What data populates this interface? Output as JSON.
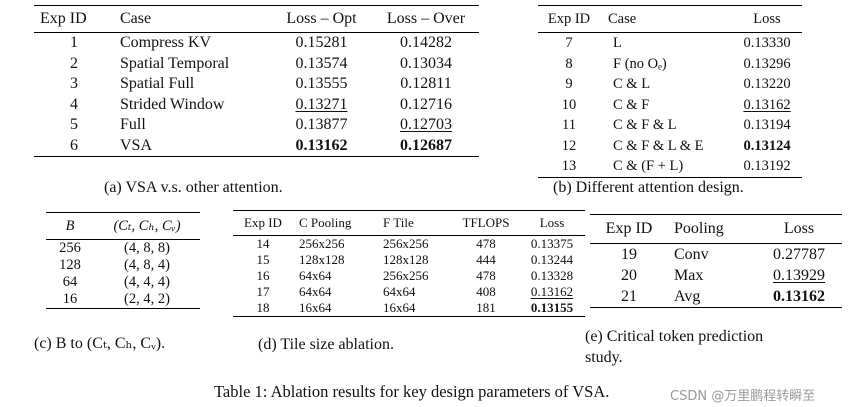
{
  "table_a": {
    "headers": [
      "Exp ID",
      "Case",
      "Loss – Opt",
      "Loss – Over"
    ],
    "rows": [
      [
        "1",
        "Compress KV",
        "0.15281",
        "0.14282"
      ],
      [
        "2",
        "Spatial Temporal",
        "0.13574",
        "0.13034"
      ],
      [
        "3",
        "Spatial Full",
        "0.13555",
        "0.12811"
      ],
      [
        "4",
        "Strided Window",
        "0.13271",
        "0.12716"
      ],
      [
        "5",
        "Full",
        "0.13877",
        "0.12703"
      ],
      [
        "6",
        "VSA",
        "0.13162",
        "0.12687"
      ]
    ],
    "caption": "(a) VSA  v.s. other attention."
  },
  "table_b": {
    "headers": [
      "Exp ID",
      "Case",
      "Loss"
    ],
    "rows": [
      [
        "7",
        "L",
        "0.13330"
      ],
      [
        "8",
        "F (no Oₑ)",
        "0.13296"
      ],
      [
        "9",
        "C & L",
        "0.13220"
      ],
      [
        "10",
        "C & F",
        "0.13162"
      ],
      [
        "11",
        "C & F & L",
        "0.13194"
      ],
      [
        "12",
        "C & F & L & E",
        "0.13124"
      ],
      [
        "13",
        "C & (F + L)",
        "0.13192"
      ]
    ],
    "caption": "(b) Different attention design."
  },
  "table_c": {
    "headers": [
      "B",
      "(Cₜ, Cₕ, Cᵥ)"
    ],
    "rows": [
      [
        "256",
        "(4, 8, 8)"
      ],
      [
        "128",
        "(4, 8, 4)"
      ],
      [
        "64",
        "(4, 4, 4)"
      ],
      [
        "16",
        "(2, 4, 2)"
      ]
    ],
    "caption": "(c) B to (Cₜ,  Cₕ,  Cᵥ)."
  },
  "table_d": {
    "headers": [
      "Exp ID",
      "C Pooling",
      "F Tile",
      "TFLOPS",
      "Loss"
    ],
    "rows": [
      [
        "14",
        "256x256",
        "256x256",
        "478",
        "0.13375"
      ],
      [
        "15",
        "128x128",
        "128x128",
        "444",
        "0.13244"
      ],
      [
        "16",
        "64x64",
        "256x256",
        "478",
        "0.13328"
      ],
      [
        "17",
        "64x64",
        "64x64",
        "408",
        "0.13162"
      ],
      [
        "18",
        "16x64",
        "16x64",
        "181",
        "0.13155"
      ]
    ],
    "caption": "(d) Tile size ablation."
  },
  "table_e": {
    "headers": [
      "Exp ID",
      "Pooling",
      "Loss"
    ],
    "rows": [
      [
        "19",
        "Conv",
        "0.27787"
      ],
      [
        "20",
        "Max",
        "0.13929"
      ],
      [
        "21",
        "Avg",
        "0.13162"
      ]
    ],
    "caption_line1": "(e)  Critical  token  prediction",
    "caption_line2": "study."
  },
  "main_caption": "Table 1: Ablation results for key design parameters of VSA.",
  "watermark": "CSDN @万里鹏程转瞬至"
}
